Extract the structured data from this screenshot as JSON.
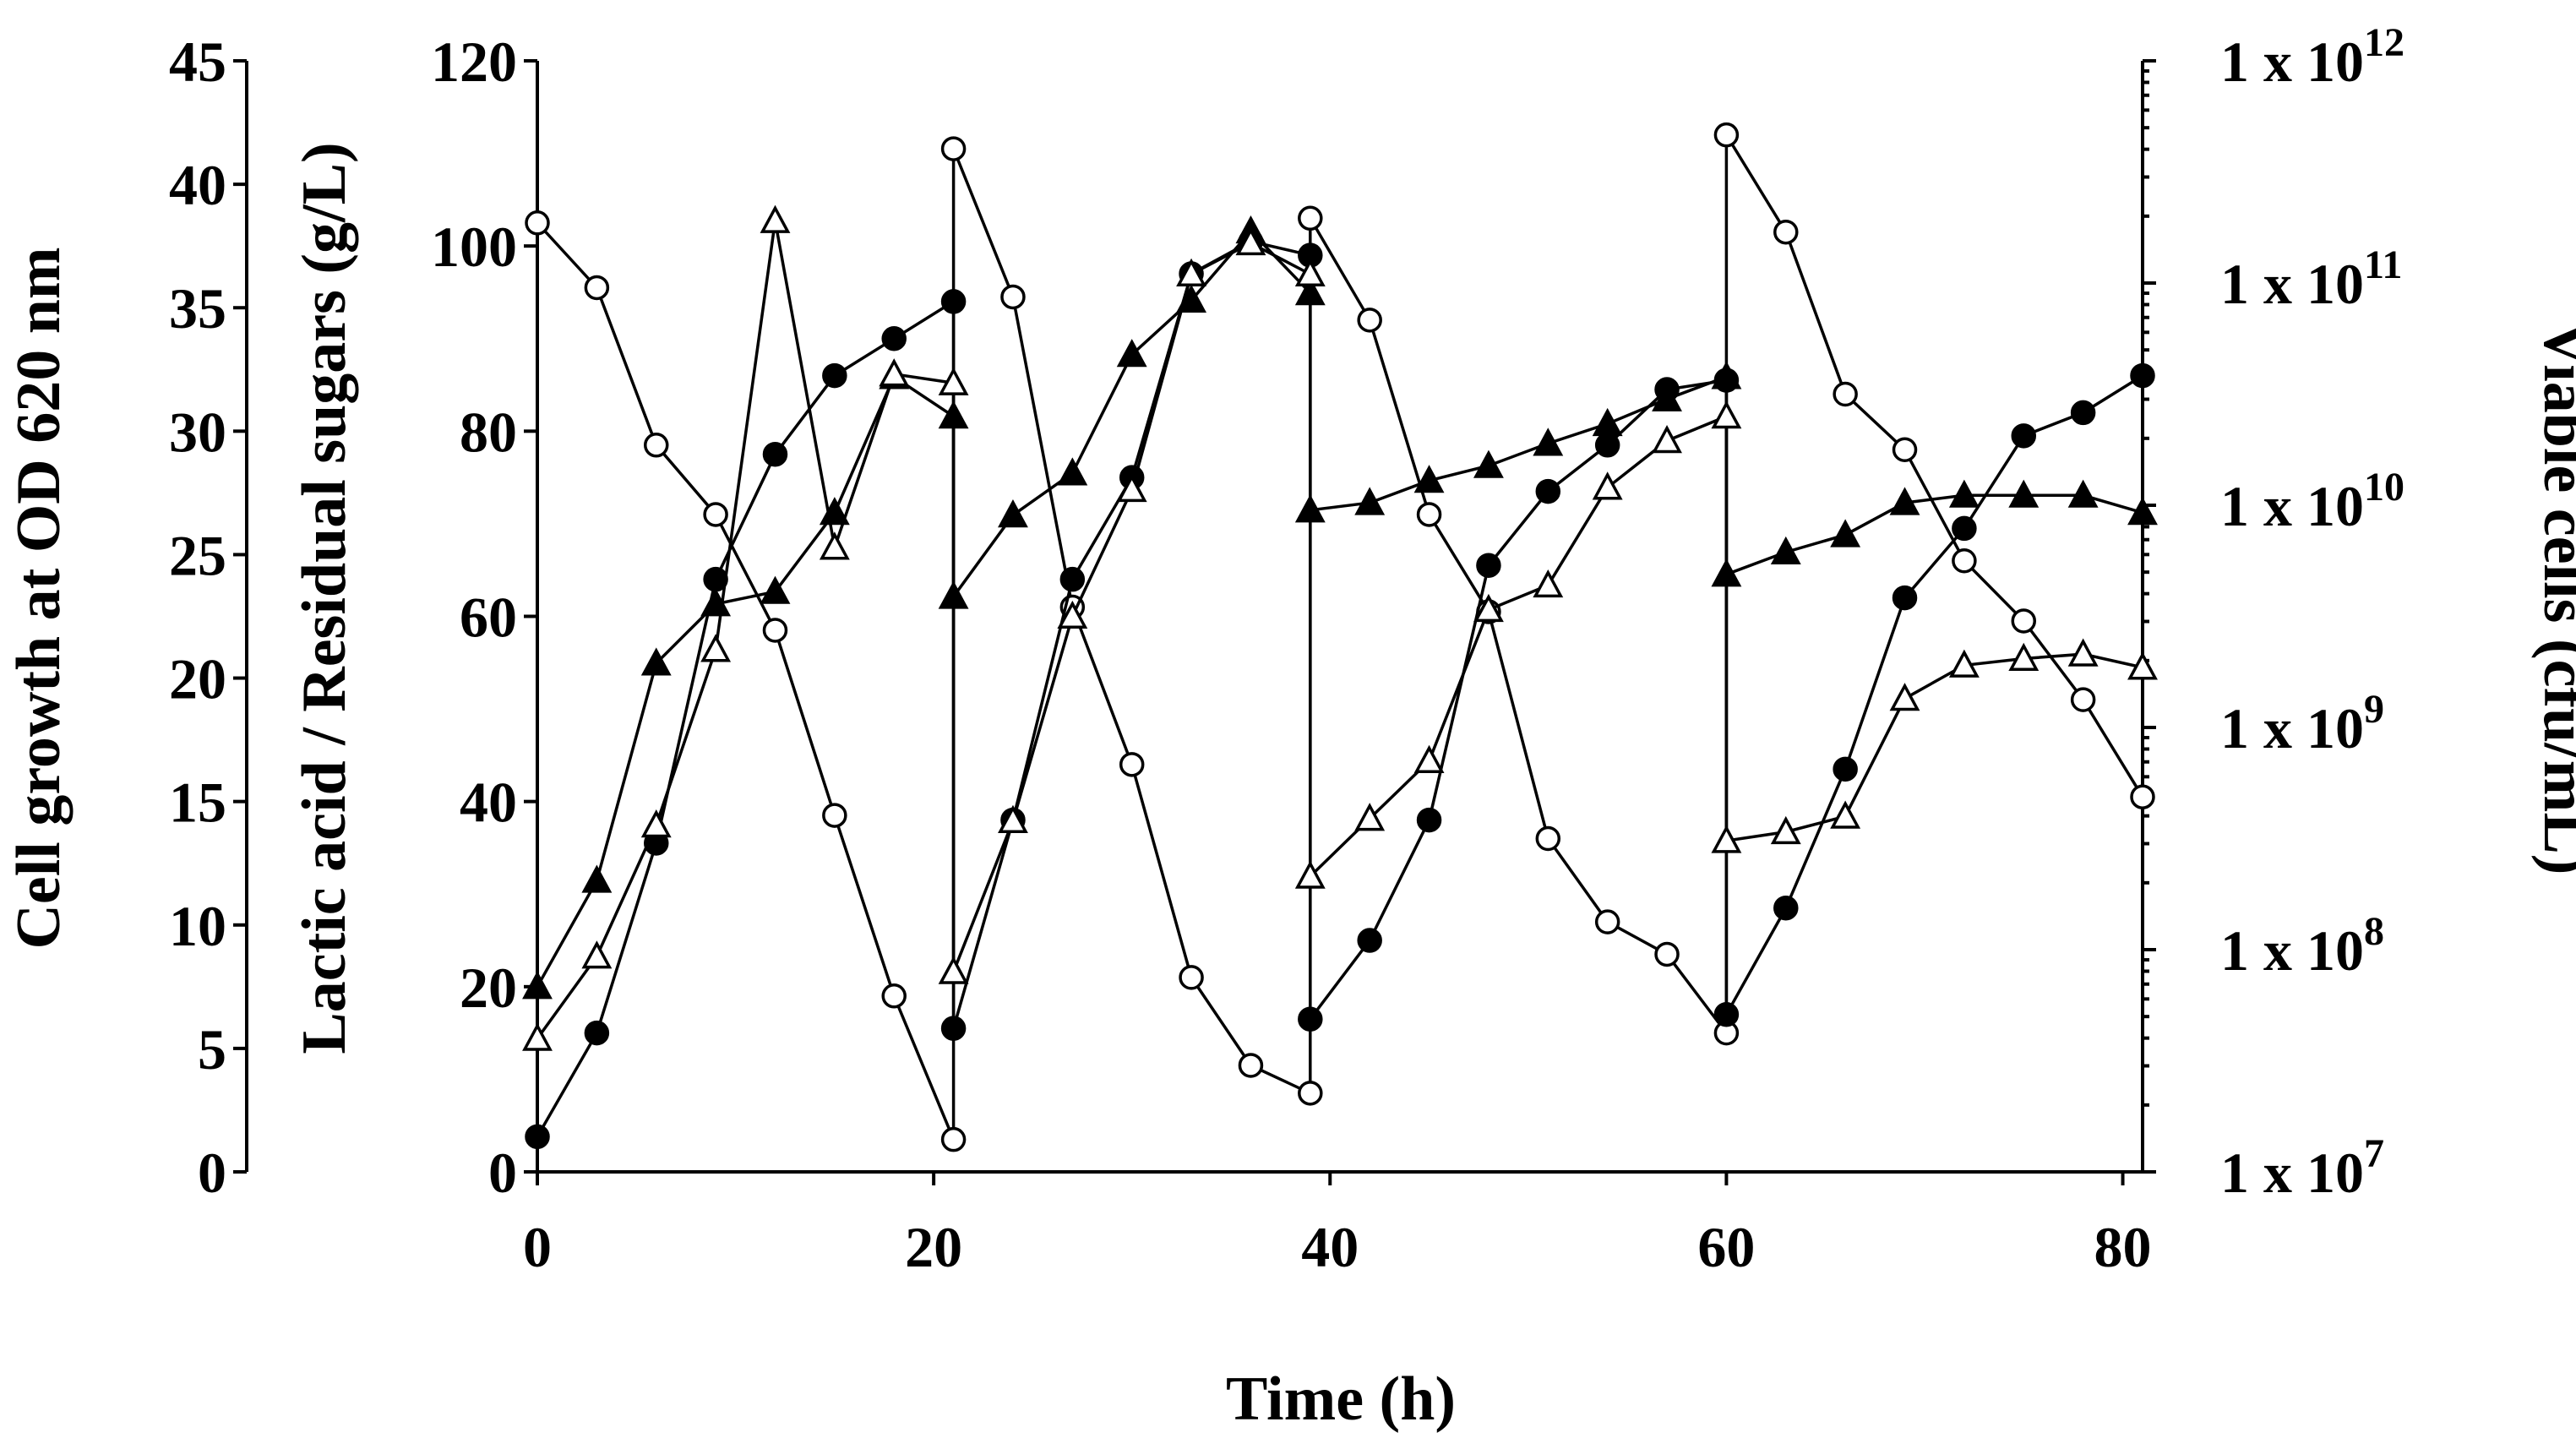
{
  "chart_data": {
    "type": "line",
    "title": "",
    "xlabel": "Time (h)",
    "ylabel_left_outer": "Cell growth at OD 620 nm",
    "ylabel_left_inner": "Lactic acid / Residual sugars (g/L)",
    "ylabel_right": "Viable cells (cfu/mL)",
    "xlim": [
      0,
      81
    ],
    "xticks": [
      0,
      20,
      40,
      60,
      80
    ],
    "y_outer_lim": [
      0,
      45
    ],
    "y_outer_ticks": [
      0,
      5,
      10,
      15,
      20,
      25,
      30,
      35,
      40,
      45
    ],
    "y_inner_lim": [
      0,
      120
    ],
    "y_inner_ticks": [
      0,
      20,
      40,
      60,
      80,
      100,
      120
    ],
    "y_right_scale": "log",
    "y_right_lim": [
      7,
      12
    ],
    "y_right_ticks": [
      {
        "exp": 7,
        "base": "1 x 10",
        "sup": "7"
      },
      {
        "exp": 8,
        "base": "1 x 10",
        "sup": "8"
      },
      {
        "exp": 9,
        "base": "1 x 10",
        "sup": "9"
      },
      {
        "exp": 10,
        "base": "1 x 10",
        "sup": "10"
      },
      {
        "exp": 11,
        "base": "1 x 10",
        "sup": "11"
      },
      {
        "exp": 12,
        "base": "1 x 10",
        "sup": "12"
      }
    ],
    "series": [
      {
        "name": "Residual sugars",
        "axis": "inner",
        "marker": "circle-open",
        "x": [
          0,
          3,
          6,
          9,
          12,
          15,
          18,
          21,
          21,
          24,
          27,
          30,
          33,
          36,
          39,
          39,
          42,
          45,
          48,
          51,
          54,
          57,
          60,
          60,
          63,
          66,
          69,
          72,
          75,
          78,
          81
        ],
        "y": [
          102.5,
          95.5,
          78.5,
          71,
          58.5,
          38.5,
          19,
          3.5,
          110.5,
          94.5,
          61,
          44,
          21,
          11.5,
          8.5,
          103,
          92,
          71,
          60.5,
          36,
          27,
          23.5,
          15,
          112,
          101.5,
          84,
          78,
          66,
          59.5,
          51,
          40.5
        ]
      },
      {
        "name": "Lactic acid",
        "axis": "inner",
        "marker": "circle-filled",
        "x": [
          0,
          3,
          6,
          9,
          12,
          15,
          18,
          21,
          21,
          24,
          27,
          30,
          33,
          36,
          39,
          39,
          42,
          45,
          48,
          51,
          54,
          57,
          60,
          60,
          63,
          66,
          69,
          72,
          75,
          78,
          81
        ],
        "y": [
          3.8,
          15,
          35.5,
          64,
          77.5,
          86,
          90,
          94,
          15.5,
          38,
          64,
          75,
          97,
          100.5,
          99,
          16.5,
          25,
          38,
          65.5,
          73.5,
          78.5,
          84.5,
          85.5,
          17,
          28.5,
          43.5,
          62,
          69.5,
          79.5,
          82,
          86
        ]
      },
      {
        "name": "Cell growth OD 620 nm",
        "axis": "outer",
        "marker": "triangle-filled",
        "x": [
          0,
          3,
          6,
          9,
          12,
          15,
          18,
          21,
          21,
          24,
          27,
          30,
          33,
          36,
          39,
          39,
          42,
          45,
          48,
          51,
          54,
          57,
          60,
          60,
          63,
          66,
          69,
          72,
          75,
          78,
          81
        ],
        "y": [
          7.5,
          11.8,
          20.6,
          23,
          23.5,
          26.7,
          32.2,
          30.6,
          23.3,
          26.6,
          28.3,
          33.1,
          35.3,
          38.1,
          35.6,
          26.8,
          27.1,
          28,
          28.6,
          29.5,
          30.3,
          31.3,
          32.2,
          24.2,
          25.1,
          25.8,
          27.1,
          27.4,
          27.4,
          27.4,
          26.7
        ]
      },
      {
        "name": "Viable cells",
        "axis": "right",
        "marker": "triangle-open",
        "x": [
          0,
          3,
          6,
          9,
          12,
          15,
          18,
          21,
          21,
          24,
          27,
          30,
          33,
          36,
          39,
          39,
          42,
          45,
          48,
          51,
          54,
          57,
          60,
          60,
          63,
          66,
          69,
          72,
          75,
          78,
          81
        ],
        "y": [
          7.6,
          7.97,
          8.56,
          9.35,
          11.28,
          9.81,
          10.59,
          10.55,
          7.9,
          8.58,
          9.5,
          10.07,
          11.04,
          11.18,
          11.04,
          8.33,
          8.59,
          8.85,
          9.53,
          9.64,
          10.08,
          10.29,
          10.4,
          8.49,
          8.53,
          8.6,
          9.13,
          9.28,
          9.31,
          9.33,
          9.27
        ]
      }
    ]
  }
}
